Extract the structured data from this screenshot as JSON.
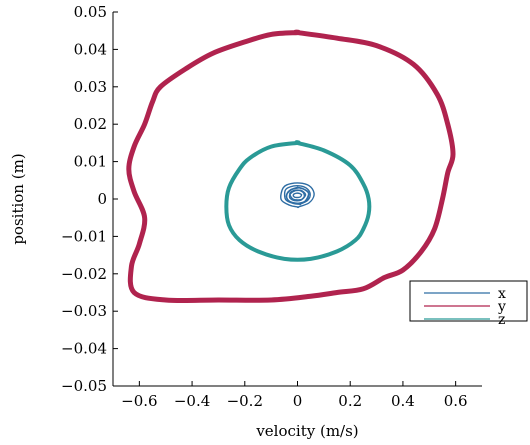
{
  "chart_data": {
    "type": "line",
    "title": "",
    "xlabel": "velocity (m/s)",
    "ylabel": "position (m)",
    "xlim": [
      -0.7,
      0.7
    ],
    "ylim": [
      -0.05,
      0.05
    ],
    "x_ticks": [
      "−0.6",
      "−0.4",
      "−0.2",
      "0",
      "0.2",
      "0.4",
      "0.6"
    ],
    "x_tick_values": [
      -0.6,
      -0.4,
      -0.2,
      0,
      0.2,
      0.4,
      0.6
    ],
    "y_ticks": [
      "0.05",
      "0.04",
      "0.03",
      "0.02",
      "0.01",
      "0",
      "−0.01",
      "−0.02",
      "−0.03",
      "−0.04",
      "−0.05"
    ],
    "y_tick_values": [
      0.05,
      0.04,
      0.03,
      0.02,
      0.01,
      0,
      -0.01,
      -0.02,
      -0.03,
      -0.04,
      -0.05
    ],
    "grid": false,
    "legend_position": "bottom-right",
    "series": [
      {
        "name": "x",
        "color": "#2e6da4",
        "x": [
          0.0,
          0.03,
          0.06,
          0.05,
          0.02,
          -0.02,
          -0.05,
          -0.06,
          -0.04,
          0.0
        ],
        "y": [
          0.004,
          0.0035,
          0.002,
          -0.001,
          -0.002,
          -0.002,
          -0.001,
          0.001,
          0.003,
          0.004
        ]
      },
      {
        "name": "y",
        "color": "#b0234e",
        "x": [
          0.0,
          0.15,
          0.3,
          0.44,
          0.53,
          0.57,
          0.59,
          0.57,
          0.55,
          0.52,
          0.47,
          0.4,
          0.33,
          0.25,
          0.15,
          0.05,
          -0.1,
          -0.3,
          -0.5,
          -0.62,
          -0.63,
          -0.6,
          -0.58,
          -0.62,
          -0.64,
          -0.62,
          -0.58,
          -0.55,
          -0.52,
          -0.42,
          -0.32,
          -0.2,
          -0.1,
          0.0
        ],
        "y": [
          0.0445,
          0.043,
          0.041,
          0.036,
          0.028,
          0.02,
          0.012,
          0.007,
          0.0,
          -0.008,
          -0.014,
          -0.019,
          -0.021,
          -0.024,
          -0.025,
          -0.026,
          -0.027,
          -0.027,
          -0.027,
          -0.025,
          -0.018,
          -0.012,
          -0.005,
          0.002,
          0.008,
          0.014,
          0.02,
          0.026,
          0.03,
          0.035,
          0.039,
          0.042,
          0.044,
          0.0445
        ]
      },
      {
        "name": "z",
        "color": "#2a9a96",
        "x": [
          0.0,
          0.1,
          0.2,
          0.25,
          0.27,
          0.27,
          0.25,
          0.22,
          0.15,
          0.05,
          -0.05,
          -0.15,
          -0.22,
          -0.26,
          -0.27,
          -0.26,
          -0.22,
          -0.18,
          -0.1,
          0.0
        ],
        "y": [
          0.015,
          0.013,
          0.009,
          0.004,
          0.0,
          -0.004,
          -0.008,
          -0.011,
          -0.014,
          -0.016,
          -0.016,
          -0.014,
          -0.011,
          -0.007,
          -0.002,
          0.003,
          0.008,
          0.011,
          0.014,
          0.015
        ]
      }
    ]
  }
}
